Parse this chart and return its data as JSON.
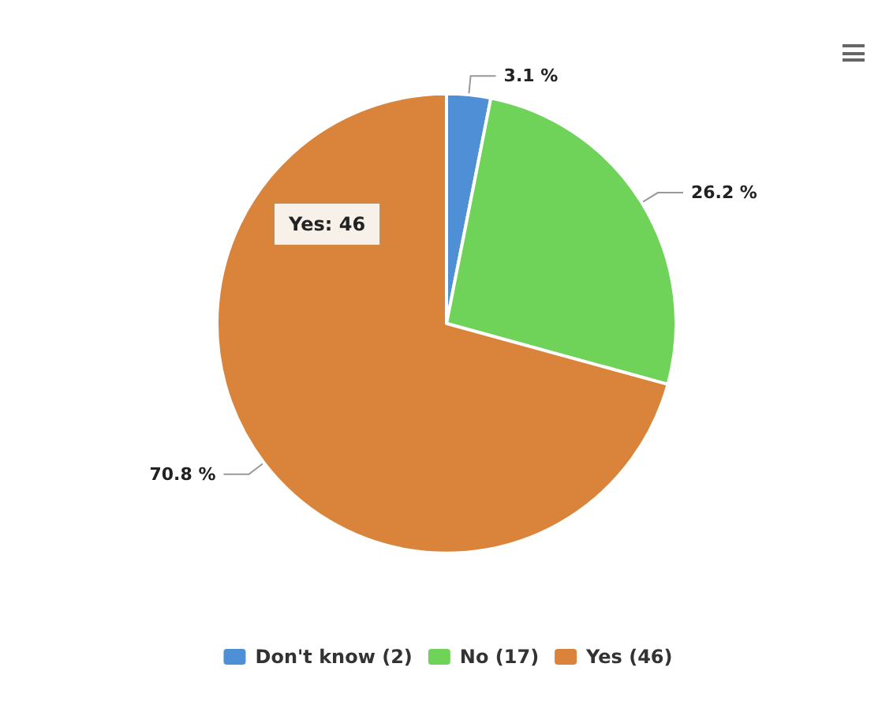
{
  "chart_data": {
    "type": "pie",
    "categories": [
      "Don't know (2)",
      "No (17)",
      "Yes (46)"
    ],
    "values": [
      3.1,
      26.2,
      70.8
    ],
    "colors": [
      "#4f8fd6",
      "#6fd35a",
      "#d9843a"
    ],
    "value_labels": [
      "3.1 %",
      "26.2 %",
      "70.8 %"
    ],
    "annotations": [
      "Yes: 46"
    ],
    "legend": "bottom"
  }
}
